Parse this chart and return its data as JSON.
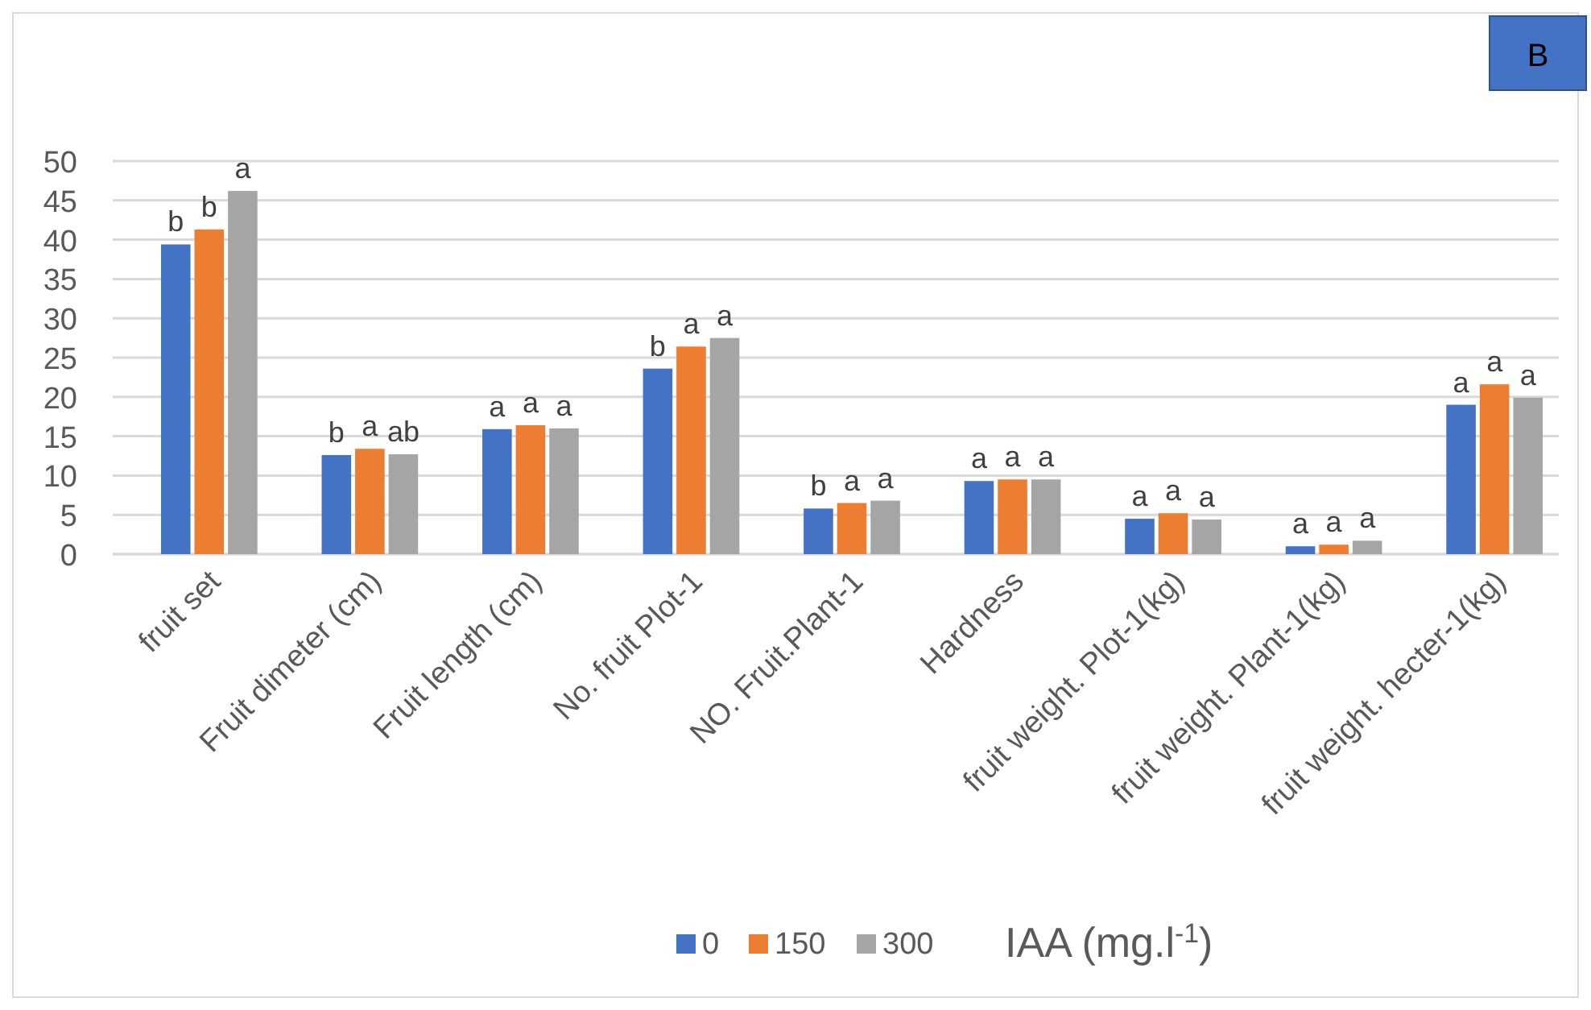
{
  "chart_data": {
    "type": "bar",
    "categories": [
      "fruit set",
      "Fruit dimeter (cm)",
      "Fruit length (cm)",
      "No. fruit Plot-1",
      "NO. Fruit.Plant-1",
      "Hardness",
      "fruit weight. Plot-1(kg)",
      "fruit weight. Plant-1(kg)",
      "fruit weight. hecter-1(kg)"
    ],
    "series": [
      {
        "name": "0",
        "color": "#4472c4",
        "values": [
          39.4,
          12.6,
          15.9,
          23.6,
          5.8,
          9.3,
          4.5,
          1.0,
          19.0
        ],
        "value_labels": [
          "b",
          "b",
          "a",
          "b",
          "b",
          "a",
          "a",
          "a",
          "a"
        ]
      },
      {
        "name": "150",
        "color": "#ed7d31",
        "values": [
          41.3,
          13.4,
          16.4,
          26.4,
          6.5,
          9.5,
          5.2,
          1.2,
          21.6
        ],
        "value_labels": [
          "b",
          "a",
          "a",
          "a",
          "a",
          "a",
          "a",
          "a",
          "a"
        ]
      },
      {
        "name": "300",
        "color": "#a5a5a5",
        "values": [
          46.2,
          12.7,
          16.0,
          27.5,
          6.8,
          9.5,
          4.4,
          1.7,
          19.9
        ],
        "value_labels": [
          "a",
          "ab",
          "a",
          "a",
          "a",
          "a",
          "a",
          "a",
          "a"
        ]
      }
    ],
    "ylim": [
      0,
      50
    ],
    "yticks": [
      0,
      5,
      10,
      15,
      20,
      25,
      30,
      35,
      40,
      45,
      50
    ],
    "grid": "y",
    "legend": "bottom",
    "legend_title": "IAA (mg.l$^{-1}$)",
    "annotations": [
      "B"
    ]
  }
}
